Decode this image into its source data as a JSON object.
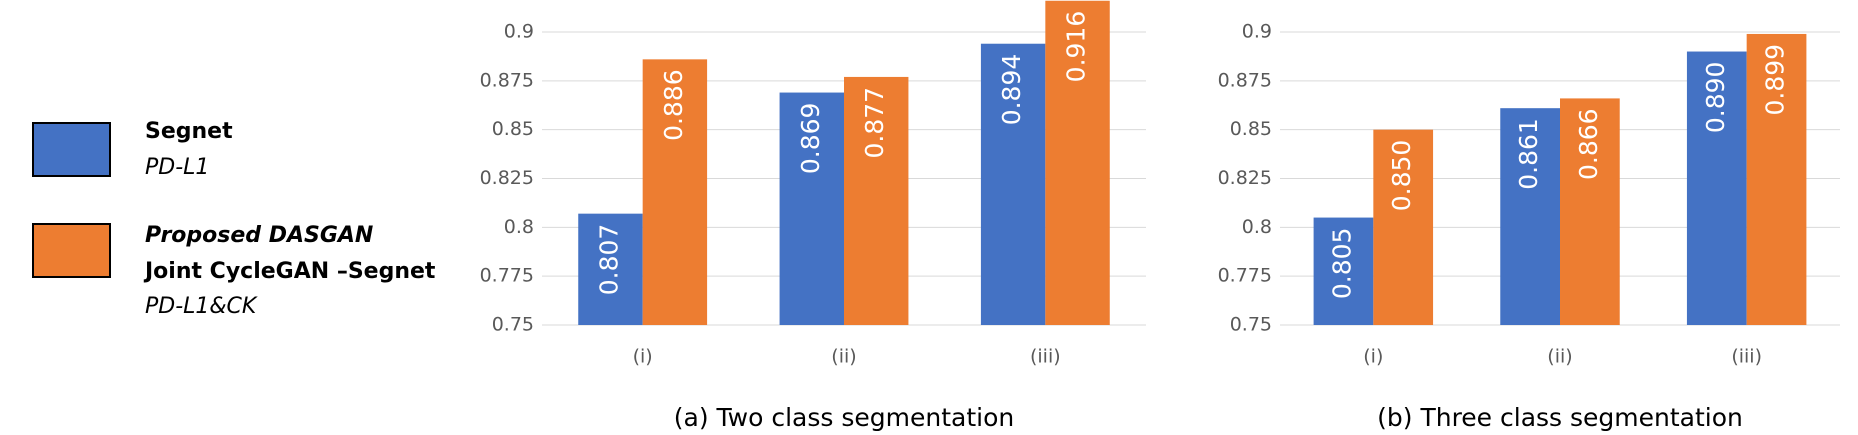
{
  "legend": [
    {
      "color": "#4472c4",
      "lines": [
        "Segnet",
        "PD-L1"
      ]
    },
    {
      "color": "#ed7d31",
      "lines": [
        "Proposed DASGAN",
        "Joint CycleGAN –Segnet",
        "PD-L1&CK"
      ]
    }
  ],
  "chart_data": [
    {
      "type": "bar",
      "title": "(a) Two class segmentation",
      "categories": [
        "(i)",
        "(ii)",
        "(iii)"
      ],
      "series": [
        {
          "color": "#4472c4",
          "values": [
            0.807,
            0.869,
            0.894
          ],
          "value_labels": [
            "0.807",
            "0.869",
            "0.894"
          ]
        },
        {
          "color": "#ed7d31",
          "values": [
            0.886,
            0.877,
            0.916
          ],
          "value_labels": [
            "0.886",
            "0.877",
            "0.916"
          ]
        }
      ],
      "ylim": [
        0.75,
        0.9
      ],
      "yticks": [
        0.75,
        0.775,
        0.8,
        0.825,
        0.85,
        0.875,
        0.9
      ],
      "grid": true
    },
    {
      "type": "bar",
      "title": "(b) Three class segmentation",
      "categories": [
        "(i)",
        "(ii)",
        "(iii)"
      ],
      "series": [
        {
          "color": "#4472c4",
          "values": [
            0.805,
            0.861,
            0.89
          ],
          "value_labels": [
            "0.805",
            "0.861",
            "0.890"
          ]
        },
        {
          "color": "#ed7d31",
          "values": [
            0.85,
            0.866,
            0.899
          ],
          "value_labels": [
            "0.850",
            "0.866",
            "0.899"
          ]
        }
      ],
      "ylim": [
        0.75,
        0.9
      ],
      "yticks": [
        0.75,
        0.775,
        0.8,
        0.825,
        0.85,
        0.875,
        0.9
      ],
      "grid": true
    }
  ]
}
